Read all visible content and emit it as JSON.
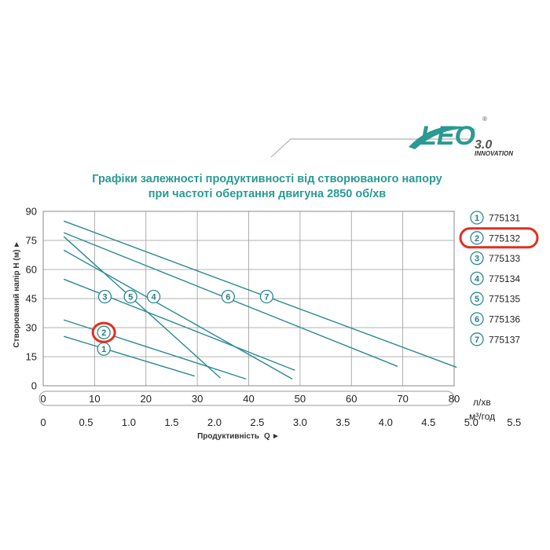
{
  "brand": {
    "logo_text": "LEO",
    "logo_version": "3.0",
    "logo_registered": "®",
    "logo_tagline": "INNOVATION",
    "accent_color": "#2a9a93",
    "highlight_color": "#e0301e"
  },
  "chart_data": {
    "type": "line",
    "title_lines": [
      "Графіки залежності продуктивності від створюваного напору",
      "при частоті обертання двигуна 2850 об/хв"
    ],
    "xlabel": "Продуктивність",
    "xlabel_symbol": "Q",
    "ylabel": "Створюваний напір H (м)",
    "x_unit": "л/хв",
    "x2_unit": "м³/год",
    "xlim": [
      0,
      80
    ],
    "ylim": [
      0,
      90
    ],
    "x_ticks": [
      "0",
      "10",
      "20",
      "30",
      "40",
      "50",
      "60",
      "70",
      "80"
    ],
    "x_tick_values": [
      0,
      10,
      20,
      30,
      40,
      50,
      60,
      70,
      80
    ],
    "x2_ticks": [
      "0",
      "0.5",
      "1.0",
      "1.5",
      "2.0",
      "2.5",
      "3.0",
      "3.5",
      "4.0",
      "4.5",
      "5.0",
      "5.5"
    ],
    "x2_tick_values": [
      0,
      0.5,
      1.0,
      1.5,
      2.0,
      2.5,
      3.0,
      3.5,
      4.0,
      4.5,
      5.0,
      5.5
    ],
    "y_ticks": [
      "0",
      "15",
      "30",
      "45",
      "60",
      "75",
      "90"
    ],
    "y_tick_values": [
      0,
      15,
      30,
      45,
      60,
      75,
      90
    ],
    "grid": true,
    "highlighted_series": "2",
    "series": [
      {
        "name": "775131",
        "marker": "1",
        "x": [
          4,
          29.5
        ],
        "y": [
          25.5,
          5
        ],
        "marker_at": [
          11.8,
          19
        ]
      },
      {
        "name": "775132",
        "marker": "2",
        "x": [
          4,
          39.5
        ],
        "y": [
          34,
          3.5
        ],
        "marker_at": [
          11.8,
          27.5
        ]
      },
      {
        "name": "775133",
        "marker": "3",
        "x": [
          4,
          49
        ],
        "y": [
          55,
          8
        ],
        "marker_at": [
          12,
          46
        ]
      },
      {
        "name": "775134",
        "marker": "4",
        "x": [
          4,
          48.5
        ],
        "y": [
          70,
          3.5
        ],
        "marker_at": [
          21.5,
          46
        ]
      },
      {
        "name": "775135",
        "marker": "5",
        "x": [
          4,
          34.5
        ],
        "y": [
          77,
          4
        ],
        "marker_at": [
          17,
          46
        ]
      },
      {
        "name": "775136",
        "marker": "6",
        "x": [
          4,
          69
        ],
        "y": [
          79,
          10
        ],
        "marker_at": [
          36,
          46
        ]
      },
      {
        "name": "775137",
        "marker": "7",
        "x": [
          4,
          80.5
        ],
        "y": [
          85,
          9.5
        ],
        "marker_at": [
          43.5,
          46
        ]
      }
    ],
    "legend": {
      "placement": "right"
    }
  }
}
